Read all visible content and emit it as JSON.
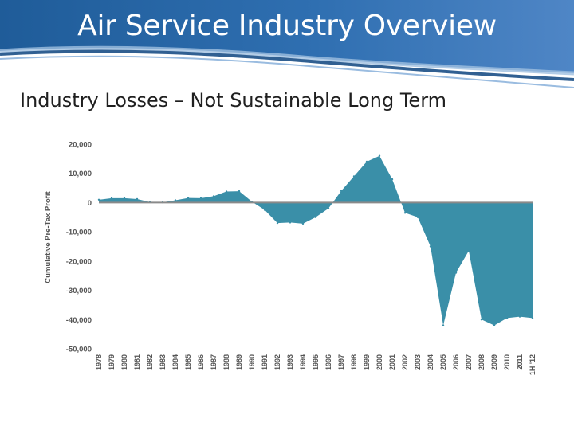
{
  "slide": {
    "title": "Air Service Industry Overview",
    "subtitle": "Industry Losses – Not Sustainable Long Term"
  },
  "colors": {
    "banner_dark": "#1f5c99",
    "banner_light": "#4f86c6",
    "area_fill": "#3a8fa8",
    "zero_line": "#8a8a8a"
  },
  "chart_data": {
    "type": "area",
    "title": "",
    "xlabel": "",
    "ylabel": "Cumulative Pre-Tax Profit",
    "ylim": [
      -50000,
      20000
    ],
    "yticks": [
      20000,
      10000,
      0,
      -10000,
      -20000,
      -30000,
      -40000,
      -50000
    ],
    "ytick_labels": [
      "20,000",
      "10,000",
      "0",
      "-10,000",
      "-20,000",
      "-30,000",
      "-40,000",
      "-50,000"
    ],
    "categories": [
      "1978",
      "1979",
      "1980",
      "1981",
      "1982",
      "1983",
      "1984",
      "1985",
      "1986",
      "1987",
      "1988",
      "1989",
      "1990",
      "1991",
      "1992",
      "1993",
      "1994",
      "1995",
      "1996",
      "1997",
      "1998",
      "1999",
      "2000",
      "2001",
      "2002",
      "2003",
      "2004",
      "2005",
      "2006",
      "2007",
      "2008",
      "2009",
      "2010",
      "2011",
      "1H '12"
    ],
    "series": [
      {
        "name": "Cumulative Pre-Tax Profit",
        "x": [
          0,
          1,
          2,
          3,
          4,
          5,
          6,
          7,
          8,
          9,
          10,
          11,
          12,
          13,
          14,
          15,
          16,
          17,
          18,
          19,
          20,
          21,
          22,
          23,
          24,
          25,
          26,
          27,
          28,
          29,
          30,
          31,
          32,
          33,
          34
        ],
        "values": [
          1000,
          1500,
          1500,
          1200,
          200,
          100,
          800,
          1600,
          1500,
          2200,
          3800,
          3900,
          300,
          -2500,
          -7000,
          -6800,
          -7200,
          -5000,
          -2000,
          4000,
          9000,
          14000,
          16000,
          8000,
          -3500,
          -5000,
          -15000,
          -42000,
          -24000,
          -16500,
          -40000,
          -42000,
          -39500,
          -39000,
          -39500
        ]
      }
    ]
  }
}
